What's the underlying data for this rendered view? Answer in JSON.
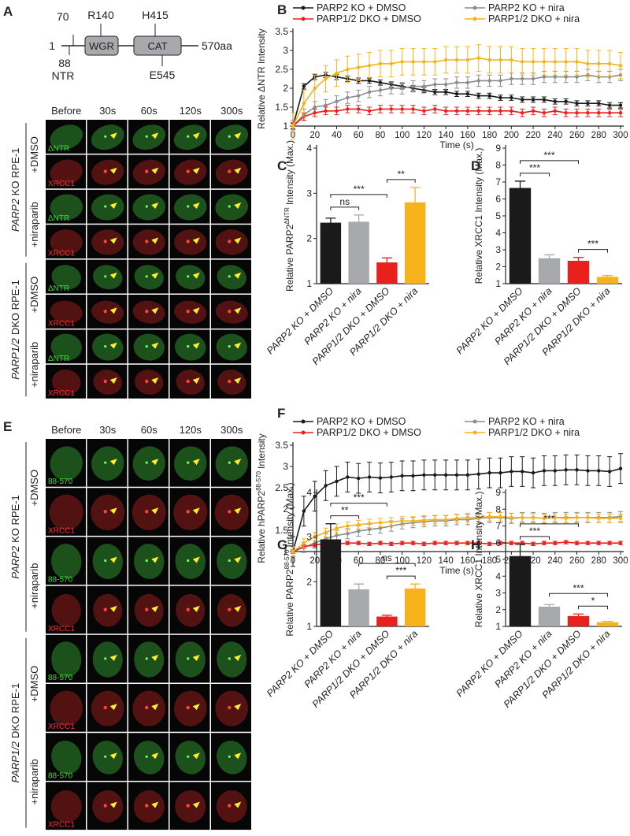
{
  "figure_a": {
    "letter": "A",
    "diagram": {
      "start": "1",
      "end": "570aa",
      "domains": [
        "WGR",
        "CAT"
      ],
      "sites_above": [
        "70",
        "R140",
        "H415"
      ],
      "sites_below": [
        "88",
        "NTR",
        "E545"
      ]
    },
    "imaging": {
      "columns": [
        "Before",
        "30s",
        "60s",
        "120s",
        "300s"
      ],
      "groups": [
        {
          "gene": "PARP2",
          "line": "KO RPE-1",
          "treatments": [
            {
              "name": "+DMSO",
              "channels": [
                "ΔNTR",
                "XRCC1"
              ]
            },
            {
              "name": "+niraparib",
              "channels": [
                "ΔNTR",
                "XRCC1"
              ]
            }
          ]
        },
        {
          "gene": "PARP1/2",
          "line": "DKO RPE-1",
          "treatments": [
            {
              "name": "+DMSO",
              "channels": [
                "ΔNTR",
                "XRCC1"
              ]
            },
            {
              "name": "+niraparib",
              "channels": [
                "ΔNTR",
                "XRCC1"
              ]
            }
          ]
        }
      ]
    }
  },
  "figure_e": {
    "letter": "E",
    "imaging": {
      "columns": [
        "Before",
        "30s",
        "60s",
        "120s",
        "300s"
      ],
      "groups": [
        {
          "gene": "PARP2",
          "line": "KO RPE-1",
          "treatments": [
            {
              "name": "+DMSO",
              "channels": [
                "88-570",
                "XRCC1"
              ]
            },
            {
              "name": "+niraparib",
              "channels": [
                "88-570",
                "XRCC1"
              ]
            }
          ]
        },
        {
          "gene": "PARP1/2",
          "line": "DKO RPE-1",
          "treatments": [
            {
              "name": "+DMSO",
              "channels": [
                "88-570",
                "XRCC1"
              ]
            },
            {
              "name": "+niraparib",
              "channels": [
                "88-570",
                "XRCC1"
              ]
            }
          ]
        }
      ]
    }
  },
  "chart_data": [
    {
      "type": "line",
      "letter": "B",
      "ylabel": "Relative ΔNTR Intensity",
      "xlabel": "Time (s)",
      "x": [
        0,
        10,
        20,
        30,
        40,
        50,
        60,
        70,
        80,
        90,
        100,
        110,
        120,
        130,
        140,
        150,
        160,
        170,
        180,
        190,
        200,
        210,
        220,
        230,
        240,
        250,
        260,
        270,
        280,
        290,
        300
      ],
      "xlim": [
        0,
        300
      ],
      "xticks": [
        0,
        20,
        40,
        60,
        80,
        100,
        120,
        140,
        160,
        180,
        200,
        220,
        240,
        260,
        280,
        300
      ],
      "ylim": [
        1,
        3.5
      ],
      "yticks": [
        1,
        1.5,
        2,
        2.5,
        3,
        3.5
      ],
      "series": [
        {
          "name": "PARP2 KO + DMSO",
          "color": "#1a1a1a",
          "error": 0.07,
          "values": [
            1,
            2.05,
            2.3,
            2.35,
            2.3,
            2.25,
            2.2,
            2.2,
            2.15,
            2.1,
            2.05,
            2.0,
            1.95,
            1.9,
            1.9,
            1.85,
            1.85,
            1.8,
            1.8,
            1.75,
            1.75,
            1.7,
            1.7,
            1.7,
            1.65,
            1.65,
            1.6,
            1.6,
            1.6,
            1.55,
            1.55
          ]
        },
        {
          "name": "PARP2 KO + nira",
          "color": "#8a8c8e",
          "error": 0.15,
          "values": [
            1,
            1.3,
            1.5,
            1.55,
            1.65,
            1.75,
            1.8,
            1.9,
            1.95,
            2.0,
            2.0,
            2.05,
            2.05,
            2.1,
            2.1,
            2.15,
            2.15,
            2.2,
            2.2,
            2.2,
            2.25,
            2.25,
            2.25,
            2.3,
            2.3,
            2.3,
            2.3,
            2.35,
            2.3,
            2.3,
            2.35
          ]
        },
        {
          "name": "PARP1/2 DKO + DMSO",
          "color": "#e8211f",
          "error": 0.1,
          "values": [
            1,
            1.25,
            1.35,
            1.4,
            1.4,
            1.45,
            1.45,
            1.4,
            1.45,
            1.45,
            1.45,
            1.45,
            1.4,
            1.45,
            1.4,
            1.4,
            1.4,
            1.4,
            1.4,
            1.4,
            1.4,
            1.35,
            1.4,
            1.35,
            1.4,
            1.35,
            1.35,
            1.35,
            1.35,
            1.35,
            1.35
          ]
        },
        {
          "name": "PARP1/2 DKO + nira",
          "color": "#f7b31c",
          "error": 0.35,
          "values": [
            1,
            1.6,
            2.0,
            2.25,
            2.4,
            2.5,
            2.55,
            2.6,
            2.65,
            2.65,
            2.7,
            2.7,
            2.7,
            2.7,
            2.75,
            2.75,
            2.75,
            2.8,
            2.75,
            2.75,
            2.75,
            2.7,
            2.7,
            2.7,
            2.7,
            2.7,
            2.7,
            2.65,
            2.65,
            2.65,
            2.6
          ]
        }
      ]
    },
    {
      "type": "bar",
      "letter": "C",
      "ylabel": [
        "Relative PARP2",
        "ΔNTR",
        "Intensity (Max.)"
      ],
      "categories": [
        "PARP2 KO + DMSO",
        "PARP2 KO + nira",
        "PARP1/2 DKO + DMSO",
        "PARP1/2 DKO + nira"
      ],
      "values": [
        2.35,
        2.37,
        1.47,
        2.8
      ],
      "errors": [
        0.1,
        0.15,
        0.1,
        0.33
      ],
      "colors": [
        "#1a1a1a",
        "#a7a9ac",
        "#e8211f",
        "#f7b31c"
      ],
      "ylim": [
        1,
        4
      ],
      "yticks": [
        1,
        2,
        3,
        4
      ],
      "significance": [
        {
          "label": "ns",
          "between": [
            "PARP2 KO + DMSO",
            "PARP2 KO + nira"
          ]
        },
        {
          "label": "**",
          "between": [
            "PARP1/2 DKO + DMSO",
            "PARP1/2 DKO + nira"
          ]
        },
        {
          "label": "***",
          "between": [
            "PARP2 KO + DMSO",
            "PARP1/2 DKO + DMSO"
          ]
        }
      ]
    },
    {
      "type": "bar",
      "letter": "D",
      "ylabel": "Relative XRCC1 Intensity (Max.)",
      "categories": [
        "PARP2 KO + DMSO",
        "PARP2 KO + nira",
        "PARP1/2 DKO + DMSO",
        "PARP1/2 DKO + nira"
      ],
      "values": [
        6.65,
        2.5,
        2.35,
        1.4
      ],
      "errors": [
        0.4,
        0.2,
        0.2,
        0.08
      ],
      "colors": [
        "#1a1a1a",
        "#a7a9ac",
        "#e8211f",
        "#f7b31c"
      ],
      "ylim": [
        1,
        9
      ],
      "yticks": [
        1,
        2,
        3,
        4,
        5,
        6,
        7,
        8,
        9
      ],
      "significance": [
        {
          "label": "***",
          "between": [
            "PARP2 KO + DMSO",
            "PARP2 KO + nira"
          ]
        },
        {
          "label": "***",
          "between": [
            "PARP1/2 DKO + DMSO",
            "PARP1/2 DKO + nira"
          ]
        },
        {
          "label": "***",
          "between": [
            "PARP2 KO + DMSO",
            "PARP1/2 DKO + DMSO"
          ]
        }
      ]
    },
    {
      "type": "line",
      "letter": "F",
      "ylabel": [
        "Relative hPARP2",
        "88-570",
        "Intensity"
      ],
      "xlabel": "Time (s)",
      "x": [
        0,
        10,
        20,
        30,
        40,
        50,
        60,
        70,
        80,
        90,
        100,
        110,
        120,
        130,
        140,
        150,
        160,
        170,
        180,
        190,
        200,
        210,
        220,
        230,
        240,
        250,
        260,
        270,
        280,
        290,
        300
      ],
      "xlim": [
        0,
        300
      ],
      "xticks": [
        0,
        20,
        40,
        60,
        80,
        100,
        120,
        140,
        160,
        180,
        200,
        220,
        240,
        260,
        280,
        300
      ],
      "ylim": [
        1,
        3.5
      ],
      "yticks": [
        1,
        1.5,
        2,
        2.5,
        3,
        3.5
      ],
      "series": [
        {
          "name": "PARP2 KO + DMSO",
          "color": "#1a1a1a",
          "error": 0.35,
          "values": [
            1,
            1.95,
            2.3,
            2.55,
            2.65,
            2.75,
            2.72,
            2.75,
            2.73,
            2.75,
            2.78,
            2.78,
            2.8,
            2.8,
            2.8,
            2.8,
            2.8,
            2.82,
            2.85,
            2.85,
            2.88,
            2.88,
            2.85,
            2.9,
            2.9,
            2.92,
            2.92,
            2.9,
            2.9,
            2.88,
            2.95
          ]
        },
        {
          "name": "PARP2 KO + nira",
          "color": "#8a8c8e",
          "error": 0.12,
          "values": [
            1,
            1.1,
            1.2,
            1.3,
            1.38,
            1.42,
            1.48,
            1.52,
            1.55,
            1.6,
            1.65,
            1.68,
            1.7,
            1.72,
            1.72,
            1.75,
            1.75,
            1.78,
            1.8,
            1.8,
            1.78,
            1.8,
            1.8,
            1.78,
            1.8,
            1.8,
            1.8,
            1.8,
            1.8,
            1.8,
            1.82
          ]
        },
        {
          "name": "PARP1/2 DKO + DMSO",
          "color": "#e8211f",
          "error": 0.04,
          "values": [
            1,
            1.12,
            1.15,
            1.2,
            1.18,
            1.2,
            1.2,
            1.18,
            1.2,
            1.18,
            1.2,
            1.2,
            1.18,
            1.2,
            1.2,
            1.2,
            1.2,
            1.2,
            1.18,
            1.2,
            1.2,
            1.2,
            1.18,
            1.2,
            1.2,
            1.22,
            1.2,
            1.2,
            1.2,
            1.2,
            1.2
          ]
        },
        {
          "name": "PARP1/2 DKO + nira",
          "color": "#f7b31c",
          "error": 0.1,
          "values": [
            1,
            1.2,
            1.35,
            1.45,
            1.55,
            1.6,
            1.63,
            1.66,
            1.68,
            1.7,
            1.72,
            1.72,
            1.74,
            1.75,
            1.75,
            1.78,
            1.8,
            1.8,
            1.82,
            1.82,
            1.8,
            1.8,
            1.8,
            1.78,
            1.8,
            1.78,
            1.8,
            1.8,
            1.78,
            1.78,
            1.78
          ]
        }
      ]
    },
    {
      "type": "bar",
      "letter": "G",
      "ylabel": [
        "Relative PARP2",
        "88-570",
        "Intensity (Max.)"
      ],
      "categories": [
        "PARP2 KO + DMSO",
        "PARP2 KO + nira",
        "PARP1/2 DKO + DMSO",
        "PARP1/2 DKO + nira"
      ],
      "values": [
        2.95,
        1.83,
        1.22,
        1.85
      ],
      "errors": [
        0.35,
        0.12,
        0.03,
        0.1
      ],
      "colors": [
        "#1a1a1a",
        "#a7a9ac",
        "#e8211f",
        "#f7b31c"
      ],
      "ylim": [
        1,
        4
      ],
      "yticks": [
        1,
        2,
        3,
        4
      ],
      "significance": [
        {
          "label": "**",
          "between": [
            "PARP2 KO + DMSO",
            "PARP2 KO + nira"
          ]
        },
        {
          "label": "***",
          "between": [
            "PARP1/2 DKO + DMSO",
            "PARP1/2 DKO + nira"
          ]
        },
        {
          "label": "***",
          "between": [
            "PARP2 KO + DMSO",
            "PARP1/2 DKO + DMSO"
          ]
        },
        {
          "label": "ns",
          "between": [
            "PARP2 KO + nira",
            "PARP1/2 DKO + nira"
          ]
        }
      ]
    },
    {
      "type": "bar",
      "letter": "H",
      "ylabel": "Relative XRCC1 Intensity (Max.)",
      "categories": [
        "PARP2 KO + DMSO",
        "PARP2 KO + nira",
        "PARP1/2 DKO + DMSO",
        "PARP1/2 DKO + nira"
      ],
      "values": [
        5.2,
        2.18,
        1.62,
        1.25
      ],
      "errors": [
        0.7,
        0.12,
        0.12,
        0.05
      ],
      "colors": [
        "#1a1a1a",
        "#a7a9ac",
        "#e8211f",
        "#f7b31c"
      ],
      "ylim": [
        1,
        9
      ],
      "yticks": [
        1,
        2,
        3,
        4,
        5,
        6,
        7,
        8,
        9
      ],
      "significance": [
        {
          "label": "***",
          "between": [
            "PARP2 KO + DMSO",
            "PARP2 KO + nira"
          ]
        },
        {
          "label": "*",
          "between": [
            "PARP1/2 DKO + DMSO",
            "PARP1/2 DKO + nira"
          ]
        },
        {
          "label": "***",
          "between": [
            "PARP2 KO + DMSO",
            "PARP1/2 DKO + DMSO"
          ]
        },
        {
          "label": "***",
          "between": [
            "PARP2 KO + nira",
            "PARP1/2 DKO + nira"
          ]
        }
      ]
    }
  ]
}
